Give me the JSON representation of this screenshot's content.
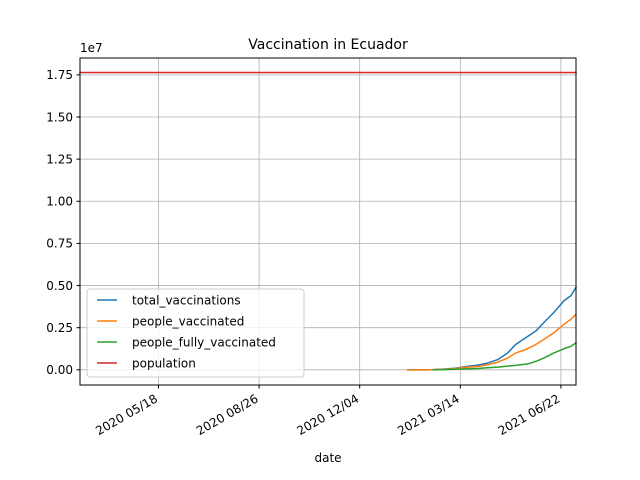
{
  "chart_data": {
    "type": "line",
    "title": "Vaccination in Ecuador",
    "xlabel": "date",
    "ylabel": "",
    "y_offset_label": "1e7",
    "x_ticks": [
      "2020 05/18",
      "2020 08/26",
      "2020 12/04",
      "2021 03/14",
      "2021 06/22"
    ],
    "xlim": [
      "2020-03-01",
      "2021-07-07"
    ],
    "y_ticks": [
      "0.00",
      "0.25",
      "0.50",
      "0.75",
      "1.00",
      "1.25",
      "1.50",
      "1.75"
    ],
    "ylim": [
      -0.09,
      1.85
    ],
    "grid": true,
    "legend_position": "lower-left",
    "series": [
      {
        "name": "total_vaccinations",
        "color": "#1f77b4",
        "points": [
          [
            "2021-01-21",
            0.0
          ],
          [
            "2021-02-10",
            0.0
          ],
          [
            "2021-02-25",
            0.004
          ],
          [
            "2021-03-10",
            0.01
          ],
          [
            "2021-03-20",
            0.02
          ],
          [
            "2021-03-31",
            0.027
          ],
          [
            "2021-04-10",
            0.04
          ],
          [
            "2021-04-20",
            0.06
          ],
          [
            "2021-04-30",
            0.1
          ],
          [
            "2021-05-08",
            0.15
          ],
          [
            "2021-05-18",
            0.19
          ],
          [
            "2021-05-28",
            0.23
          ],
          [
            "2021-06-05",
            0.28
          ],
          [
            "2021-06-15",
            0.34
          ],
          [
            "2021-06-25",
            0.41
          ],
          [
            "2021-07-02",
            0.44
          ],
          [
            "2021-07-07",
            0.49
          ]
        ]
      },
      {
        "name": "people_vaccinated",
        "color": "#ff7f0e",
        "points": [
          [
            "2021-01-21",
            0.0
          ],
          [
            "2021-02-10",
            0.0
          ],
          [
            "2021-02-25",
            0.003
          ],
          [
            "2021-03-10",
            0.008
          ],
          [
            "2021-03-20",
            0.015
          ],
          [
            "2021-03-31",
            0.02
          ],
          [
            "2021-04-10",
            0.03
          ],
          [
            "2021-04-20",
            0.045
          ],
          [
            "2021-04-30",
            0.07
          ],
          [
            "2021-05-08",
            0.1
          ],
          [
            "2021-05-18",
            0.12
          ],
          [
            "2021-05-28",
            0.15
          ],
          [
            "2021-06-05",
            0.18
          ],
          [
            "2021-06-15",
            0.22
          ],
          [
            "2021-06-25",
            0.27
          ],
          [
            "2021-07-02",
            0.3
          ],
          [
            "2021-07-07",
            0.33
          ]
        ]
      },
      {
        "name": "people_fully_vaccinated",
        "color": "#2ca02c",
        "points": [
          [
            "2021-02-15",
            0.0
          ],
          [
            "2021-03-01",
            0.002
          ],
          [
            "2021-03-15",
            0.005
          ],
          [
            "2021-03-31",
            0.008
          ],
          [
            "2021-04-10",
            0.012
          ],
          [
            "2021-04-20",
            0.016
          ],
          [
            "2021-04-30",
            0.022
          ],
          [
            "2021-05-10",
            0.028
          ],
          [
            "2021-05-20",
            0.035
          ],
          [
            "2021-05-28",
            0.05
          ],
          [
            "2021-06-05",
            0.07
          ],
          [
            "2021-06-15",
            0.1
          ],
          [
            "2021-06-25",
            0.125
          ],
          [
            "2021-07-02",
            0.14
          ],
          [
            "2021-07-07",
            0.16
          ]
        ]
      },
      {
        "name": "population",
        "color": "#d62728",
        "points": [
          [
            "2020-03-01",
            1.764
          ],
          [
            "2021-07-07",
            1.764
          ]
        ]
      }
    ]
  }
}
